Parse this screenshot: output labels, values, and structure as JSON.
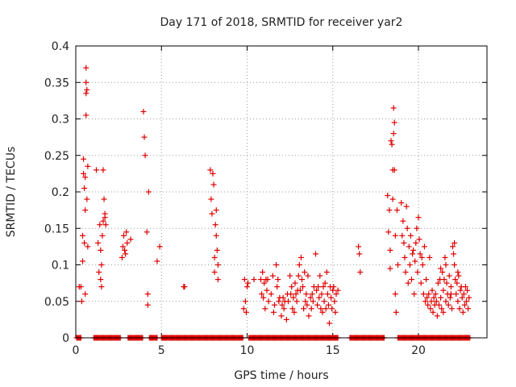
{
  "chart_data": {
    "type": "scatter",
    "title": "Day 171 of 2018, SRMTID for receiver yar2",
    "xlabel": "GPS time / hours",
    "ylabel": "SRMTID / TECUs",
    "xlim": [
      0,
      24
    ],
    "ylim": [
      0,
      0.4
    ],
    "grid": true,
    "marker": "+",
    "color": "#e00000",
    "x_ticks": [
      0,
      5,
      10,
      15,
      20
    ],
    "x_tick_labels": [
      "0",
      "5",
      "10",
      "15",
      "20"
    ],
    "y_ticks": [
      0,
      0.05,
      0.1,
      0.15,
      0.2,
      0.25,
      0.3,
      0.35,
      0.4
    ],
    "y_tick_labels": [
      "0",
      "0.05",
      "0.1",
      "0.15",
      "0.2",
      "0.25",
      "0.3",
      "0.35",
      "0.4"
    ],
    "series": [
      {
        "name": "SRMTID",
        "points": [
          [
            0.2,
            0.07
          ],
          [
            0.3,
            0.07
          ],
          [
            0.35,
            0.05
          ],
          [
            0.4,
            0.105
          ],
          [
            0.4,
            0.14
          ],
          [
            0.45,
            0.245
          ],
          [
            0.45,
            0.225
          ],
          [
            0.5,
            0.13
          ],
          [
            0.5,
            0.205
          ],
          [
            0.55,
            0.175
          ],
          [
            0.55,
            0.22
          ],
          [
            0.6,
            0.37
          ],
          [
            0.6,
            0.35
          ],
          [
            0.6,
            0.335
          ],
          [
            0.6,
            0.305
          ],
          [
            0.65,
            0.34
          ],
          [
            0.65,
            0.19
          ],
          [
            0.7,
            0.235
          ],
          [
            0.7,
            0.125
          ],
          [
            0.55,
            0.06
          ],
          [
            1.2,
            0.23
          ],
          [
            1.3,
            0.13
          ],
          [
            1.35,
            0.09
          ],
          [
            1.4,
            0.155
          ],
          [
            1.45,
            0.12
          ],
          [
            1.45,
            0.08
          ],
          [
            1.5,
            0.1
          ],
          [
            1.5,
            0.07
          ],
          [
            1.55,
            0.14
          ],
          [
            1.6,
            0.23
          ],
          [
            1.6,
            0.16
          ],
          [
            1.65,
            0.19
          ],
          [
            1.7,
            0.165
          ],
          [
            1.7,
            0.17
          ],
          [
            1.75,
            0.155
          ],
          [
            2.7,
            0.11
          ],
          [
            2.75,
            0.125
          ],
          [
            2.8,
            0.14
          ],
          [
            2.85,
            0.12
          ],
          [
            2.9,
            0.115
          ],
          [
            2.95,
            0.145
          ],
          [
            3.0,
            0.13
          ],
          [
            3.2,
            0.135
          ],
          [
            3.95,
            0.31
          ],
          [
            4.0,
            0.275
          ],
          [
            4.05,
            0.25
          ],
          [
            4.15,
            0.145
          ],
          [
            4.2,
            0.06
          ],
          [
            4.2,
            0.045
          ],
          [
            4.25,
            0.2
          ],
          [
            4.75,
            0.105
          ],
          [
            4.9,
            0.125
          ],
          [
            6.3,
            0.07
          ],
          [
            6.35,
            0.07
          ],
          [
            7.85,
            0.23
          ],
          [
            7.9,
            0.19
          ],
          [
            7.95,
            0.17
          ],
          [
            8.0,
            0.225
          ],
          [
            8.05,
            0.21
          ],
          [
            8.1,
            0.11
          ],
          [
            8.1,
            0.09
          ],
          [
            8.15,
            0.155
          ],
          [
            8.2,
            0.175
          ],
          [
            8.2,
            0.14
          ],
          [
            8.25,
            0.12
          ],
          [
            8.3,
            0.08
          ],
          [
            8.3,
            0.1
          ],
          [
            9.8,
            0.04
          ],
          [
            9.85,
            0.08
          ],
          [
            9.9,
            0.05
          ],
          [
            9.95,
            0.035
          ],
          [
            10.0,
            0.07
          ],
          [
            10.05,
            0.075
          ],
          [
            10.4,
            0.08
          ],
          [
            10.8,
            0.08
          ],
          [
            10.85,
            0.06
          ],
          [
            10.9,
            0.09
          ],
          [
            10.95,
            0.055
          ],
          [
            11.0,
            0.075
          ],
          [
            11.05,
            0.04
          ],
          [
            11.1,
            0.08
          ],
          [
            11.15,
            0.065
          ],
          [
            11.2,
            0.08
          ],
          [
            11.25,
            0.05
          ],
          [
            11.4,
            0.06
          ],
          [
            11.5,
            0.085
          ],
          [
            11.55,
            0.035
          ],
          [
            11.6,
            0.045
          ],
          [
            11.7,
            0.1
          ],
          [
            11.75,
            0.07
          ],
          [
            11.8,
            0.08
          ],
          [
            11.85,
            0.05
          ],
          [
            11.9,
            0.055
          ],
          [
            12.0,
            0.03
          ],
          [
            12.05,
            0.045
          ],
          [
            12.1,
            0.055
          ],
          [
            12.15,
            0.04
          ],
          [
            12.2,
            0.05
          ],
          [
            12.3,
            0.025
          ],
          [
            12.35,
            0.06
          ],
          [
            12.4,
            0.05
          ],
          [
            12.5,
            0.085
          ],
          [
            12.55,
            0.06
          ],
          [
            12.6,
            0.07
          ],
          [
            12.65,
            0.04
          ],
          [
            12.7,
            0.055
          ],
          [
            12.75,
            0.035
          ],
          [
            12.8,
            0.075
          ],
          [
            12.85,
            0.06
          ],
          [
            12.9,
            0.05
          ],
          [
            12.95,
            0.065
          ],
          [
            13.0,
            0.085
          ],
          [
            13.05,
            0.1
          ],
          [
            13.1,
            0.065
          ],
          [
            13.15,
            0.11
          ],
          [
            13.2,
            0.08
          ],
          [
            13.25,
            0.07
          ],
          [
            13.3,
            0.04
          ],
          [
            13.35,
            0.09
          ],
          [
            13.4,
            0.05
          ],
          [
            13.45,
            0.06
          ],
          [
            13.5,
            0.045
          ],
          [
            13.55,
            0.085
          ],
          [
            13.6,
            0.03
          ],
          [
            13.7,
            0.055
          ],
          [
            13.75,
            0.04
          ],
          [
            13.8,
            0.06
          ],
          [
            13.85,
            0.05
          ],
          [
            13.9,
            0.07
          ],
          [
            14.0,
            0.115
          ],
          [
            14.05,
            0.065
          ],
          [
            14.1,
            0.045
          ],
          [
            14.15,
            0.07
          ],
          [
            14.2,
            0.055
          ],
          [
            14.25,
            0.085
          ],
          [
            14.3,
            0.04
          ],
          [
            14.35,
            0.06
          ],
          [
            14.4,
            0.035
          ],
          [
            14.45,
            0.07
          ],
          [
            14.5,
            0.05
          ],
          [
            14.55,
            0.075
          ],
          [
            14.6,
            0.04
          ],
          [
            14.65,
            0.09
          ],
          [
            14.7,
            0.06
          ],
          [
            14.75,
            0.045
          ],
          [
            14.8,
            0.02
          ],
          [
            14.85,
            0.07
          ],
          [
            14.9,
            0.055
          ],
          [
            14.95,
            0.04
          ],
          [
            15.0,
            0.065
          ],
          [
            15.05,
            0.07
          ],
          [
            15.1,
            0.05
          ],
          [
            15.15,
            0.035
          ],
          [
            15.2,
            0.06
          ],
          [
            15.3,
            0.065
          ],
          [
            16.5,
            0.125
          ],
          [
            16.55,
            0.115
          ],
          [
            16.6,
            0.09
          ],
          [
            18.2,
            0.195
          ],
          [
            18.25,
            0.145
          ],
          [
            18.3,
            0.175
          ],
          [
            18.35,
            0.12
          ],
          [
            18.35,
            0.095
          ],
          [
            18.4,
            0.27
          ],
          [
            18.45,
            0.265
          ],
          [
            18.5,
            0.23
          ],
          [
            18.5,
            0.19
          ],
          [
            18.55,
            0.28
          ],
          [
            18.55,
            0.315
          ],
          [
            18.6,
            0.295
          ],
          [
            18.6,
            0.23
          ],
          [
            18.65,
            0.14
          ],
          [
            18.65,
            0.06
          ],
          [
            18.7,
            0.035
          ],
          [
            18.75,
            0.175
          ],
          [
            18.8,
            0.1
          ],
          [
            19.0,
            0.185
          ],
          [
            19.05,
            0.14
          ],
          [
            19.1,
            0.16
          ],
          [
            19.15,
            0.13
          ],
          [
            19.2,
            0.11
          ],
          [
            19.25,
            0.09
          ],
          [
            19.3,
            0.18
          ],
          [
            19.35,
            0.15
          ],
          [
            19.4,
            0.075
          ],
          [
            19.45,
            0.125
          ],
          [
            19.5,
            0.1
          ],
          [
            19.55,
            0.14
          ],
          [
            19.6,
            0.08
          ],
          [
            19.65,
            0.115
          ],
          [
            19.7,
            0.12
          ],
          [
            19.75,
            0.06
          ],
          [
            19.8,
            0.105
          ],
          [
            19.85,
            0.13
          ],
          [
            19.9,
            0.15
          ],
          [
            19.95,
            0.09
          ],
          [
            20.0,
            0.165
          ],
          [
            20.05,
            0.135
          ],
          [
            20.1,
            0.115
          ],
          [
            20.15,
            0.075
          ],
          [
            20.2,
            0.11
          ],
          [
            20.25,
            0.1
          ],
          [
            20.3,
            0.06
          ],
          [
            20.35,
            0.125
          ],
          [
            20.4,
            0.05
          ],
          [
            20.45,
            0.08
          ],
          [
            20.5,
            0.055
          ],
          [
            20.55,
            0.045
          ],
          [
            20.6,
            0.06
          ],
          [
            20.65,
            0.11
          ],
          [
            20.7,
            0.04
          ],
          [
            20.75,
            0.05
          ],
          [
            20.8,
            0.065
          ],
          [
            20.85,
            0.035
          ],
          [
            20.9,
            0.055
          ],
          [
            20.95,
            0.045
          ],
          [
            21.0,
            0.06
          ],
          [
            21.05,
            0.05
          ],
          [
            21.1,
            0.03
          ],
          [
            21.15,
            0.075
          ],
          [
            21.2,
            0.045
          ],
          [
            21.25,
            0.08
          ],
          [
            21.3,
            0.055
          ],
          [
            21.35,
            0.04
          ],
          [
            21.4,
            0.09
          ],
          [
            21.45,
            0.065
          ],
          [
            21.5,
            0.08
          ],
          [
            21.55,
            0.11
          ],
          [
            21.6,
            0.05
          ],
          [
            21.65,
            0.075
          ],
          [
            21.7,
            0.06
          ],
          [
            21.75,
            0.045
          ],
          [
            21.8,
            0.085
          ],
          [
            21.85,
            0.055
          ],
          [
            21.9,
            0.07
          ],
          [
            21.95,
            0.04
          ],
          [
            22.0,
            0.125
          ],
          [
            22.05,
            0.115
          ],
          [
            22.1,
            0.1
          ],
          [
            22.15,
            0.08
          ],
          [
            22.2,
            0.06
          ],
          [
            22.25,
            0.075
          ],
          [
            22.3,
            0.05
          ],
          [
            22.35,
            0.085
          ],
          [
            22.4,
            0.04
          ],
          [
            22.45,
            0.065
          ],
          [
            22.5,
            0.07
          ],
          [
            22.55,
            0.055
          ],
          [
            22.6,
            0.035
          ],
          [
            22.65,
            0.06
          ],
          [
            22.7,
            0.045
          ],
          [
            22.75,
            0.07
          ],
          [
            22.8,
            0.05
          ],
          [
            22.85,
            0.065
          ],
          [
            22.9,
            0.04
          ],
          [
            22.95,
            0.055
          ],
          [
            21.3,
            0.095
          ],
          [
            21.45,
            0.035
          ],
          [
            21.6,
            0.1
          ],
          [
            21.9,
            0.06
          ],
          [
            22.1,
            0.13
          ],
          [
            22.3,
            0.09
          ]
        ]
      }
    ],
    "zero_band": {
      "y": 0,
      "x_ranges": [
        [
          0.05,
          0.3
        ],
        [
          1.05,
          2.6
        ],
        [
          3.05,
          3.9
        ],
        [
          4.3,
          4.75
        ],
        [
          5.0,
          9.75
        ],
        [
          10.1,
          15.3
        ],
        [
          16.0,
          18.0
        ],
        [
          18.8,
          23.0
        ]
      ],
      "step": 0.05
    }
  }
}
